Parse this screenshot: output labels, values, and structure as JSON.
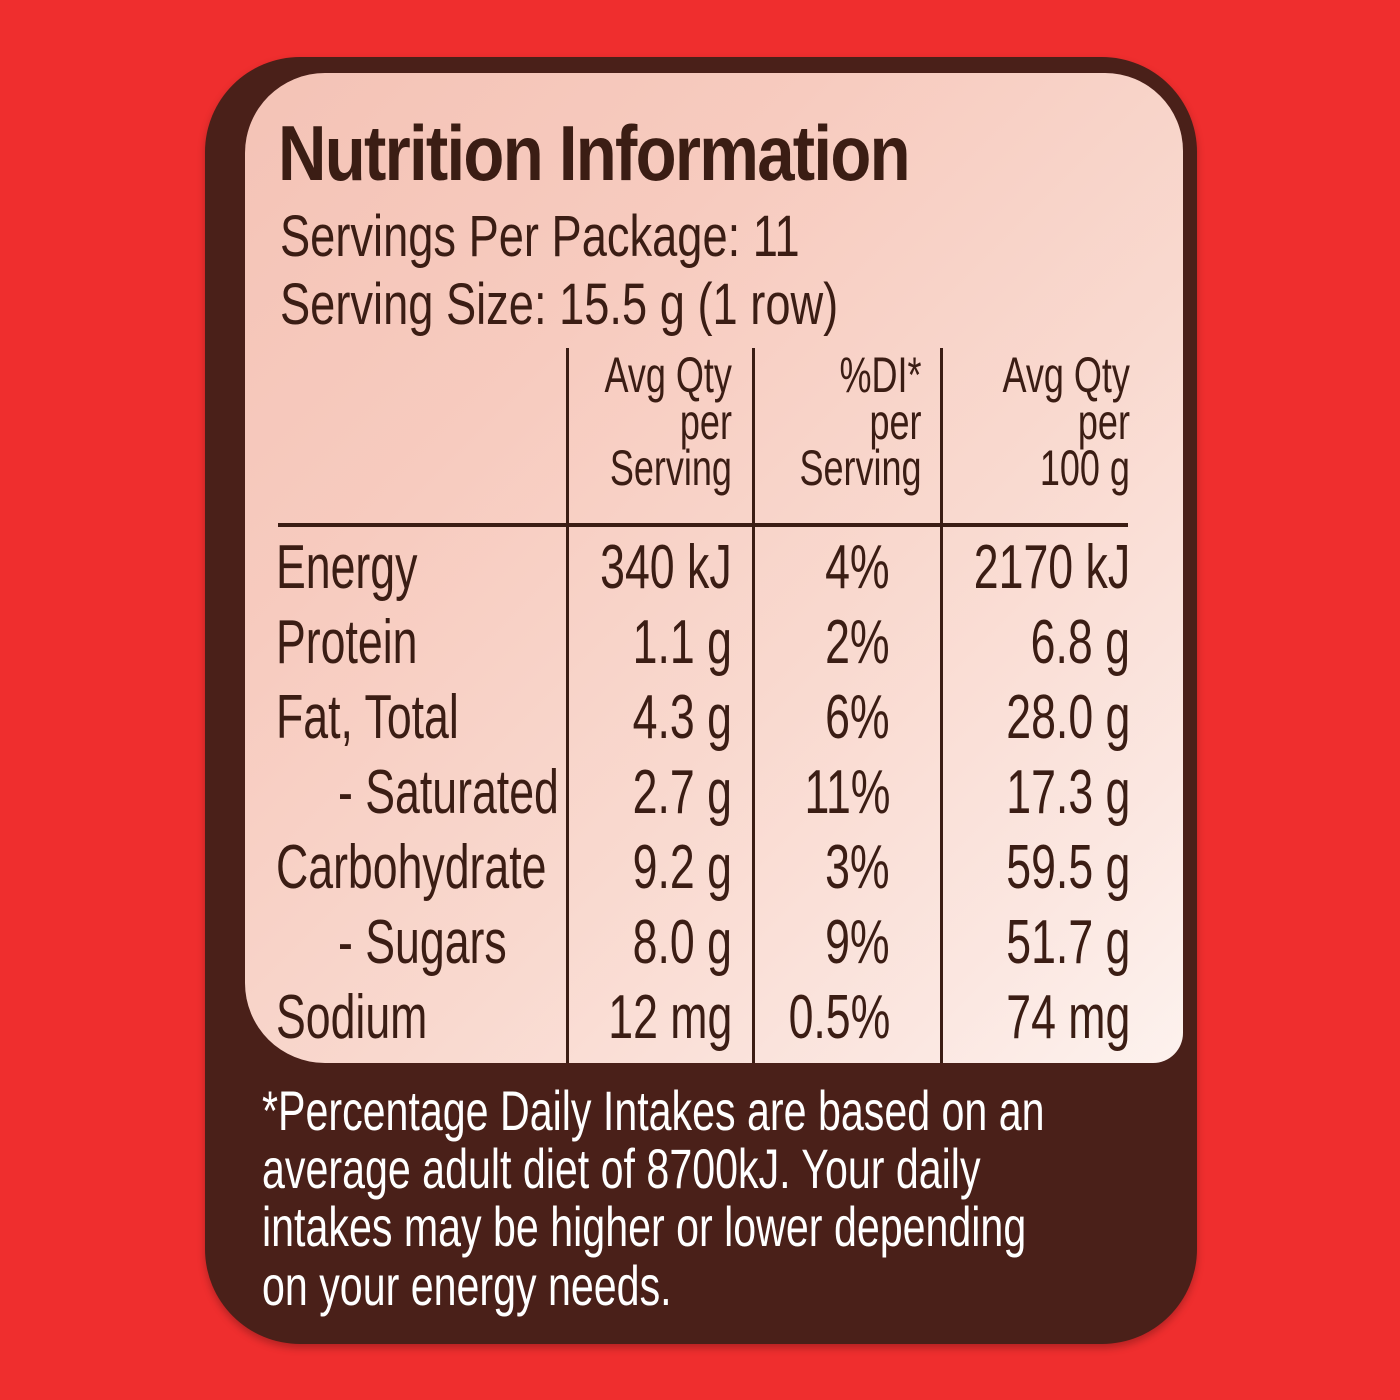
{
  "title": "Nutrition Information",
  "servings_per_package": "Servings Per Package: 11",
  "serving_size": "Serving Size: 15.5 g (1 row)",
  "columns": {
    "per_serving": [
      "Avg Qty",
      "per",
      "Serving"
    ],
    "di_per_serving": [
      "%DI*",
      "per",
      "Serving"
    ],
    "per_100g": [
      "Avg Qty",
      "per",
      "100 g"
    ]
  },
  "rows": [
    {
      "name": "Energy",
      "per_serving": "340 kJ",
      "di": "4%",
      "per_100g": "2170 kJ"
    },
    {
      "name": "Protein",
      "per_serving": "1.1 g",
      "di": "2%",
      "per_100g": "6.8 g"
    },
    {
      "name": "Fat, Total",
      "per_serving": "4.3 g",
      "di": "6%",
      "per_100g": "28.0 g"
    },
    {
      "name": "- Saturated",
      "per_serving": "2.7 g",
      "di": "11%",
      "per_100g": "17.3 g"
    },
    {
      "name": "Carbohydrate",
      "per_serving": "9.2 g",
      "di": "3%",
      "per_100g": "59.5 g"
    },
    {
      "name": "- Sugars",
      "per_serving": "8.0 g",
      "di": "9%",
      "per_100g": "51.7 g"
    },
    {
      "name": "Sodium",
      "per_serving": "12 mg",
      "di": "0.5%",
      "per_100g": "74 mg"
    }
  ],
  "footnote": [
    "*Percentage Daily Intakes are based on an",
    "average adult diet of 8700kJ. Your daily",
    "intakes may be higher or lower depending",
    "on your energy needs."
  ],
  "colors": {
    "background": "#ef2e2e",
    "frame": "#4a2019",
    "text": "#3b1d14",
    "panel_light": "#fdf2ee",
    "panel_pink": "#f4c3b6"
  }
}
